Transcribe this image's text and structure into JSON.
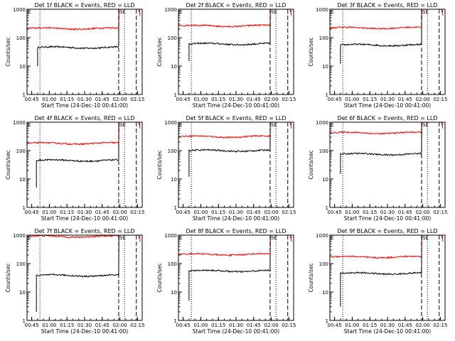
{
  "colors": {
    "events": "#000000",
    "lld": "#ff0000",
    "axis": "#000000"
  },
  "common": {
    "xlabel": "Start Time (24-Dec-10 00:41:00)",
    "ylabel": "Counts/sec",
    "xticks": [
      "00:45",
      "01:00",
      "01:15",
      "01:30",
      "01:45",
      "02:00",
      "02:15"
    ],
    "yticks": [
      "1",
      "10",
      "100",
      "1000"
    ],
    "marker_text": "SE"
  },
  "chart_data": [
    {
      "type": "line",
      "title": "Det 1f BLACK = Events, RED = LLD",
      "yscale": "log",
      "ylim": [
        1,
        1000
      ],
      "xlim": [
        "00:41",
        "02:19"
      ],
      "series": [
        {
          "name": "Events",
          "color": "#000000",
          "level": 45,
          "rise_from": 10,
          "start": "00:50",
          "end": "01:59"
        },
        {
          "name": "LLD",
          "color": "#ff0000",
          "level": 210,
          "start": "00:41",
          "end": "01:59"
        }
      ]
    },
    {
      "type": "line",
      "title": "Det 2f BLACK = Events, RED = LLD",
      "yscale": "log",
      "ylim": [
        1,
        1000
      ],
      "xlim": [
        "00:41",
        "02:19"
      ],
      "series": [
        {
          "name": "Events",
          "color": "#000000",
          "level": 60,
          "rise_from": 15,
          "start": "00:50",
          "end": "01:59"
        },
        {
          "name": "LLD",
          "color": "#ff0000",
          "level": 260,
          "start": "00:41",
          "end": "01:59"
        }
      ]
    },
    {
      "type": "line",
      "title": "Det 3f BLACK = Events, RED = LLD",
      "yscale": "log",
      "ylim": [
        1,
        1000
      ],
      "xlim": [
        "00:41",
        "02:19"
      ],
      "series": [
        {
          "name": "Events",
          "color": "#000000",
          "level": 55,
          "rise_from": 12,
          "start": "00:50",
          "end": "01:59"
        },
        {
          "name": "LLD",
          "color": "#ff0000",
          "level": 220,
          "start": "00:41",
          "end": "01:59"
        }
      ]
    },
    {
      "type": "line",
      "title": "Det 4f BLACK = Events, RED = LLD",
      "yscale": "log",
      "ylim": [
        1,
        1000
      ],
      "xlim": [
        "00:41",
        "02:19"
      ],
      "series": [
        {
          "name": "Events",
          "color": "#000000",
          "level": 45,
          "rise_from": 5,
          "start": "00:49",
          "end": "01:59"
        },
        {
          "name": "LLD",
          "color": "#ff0000",
          "level": 180,
          "start": "00:41",
          "end": "01:59"
        }
      ]
    },
    {
      "type": "line",
      "title": "Det 5f BLACK = Events, RED = LLD",
      "yscale": "log",
      "ylim": [
        1,
        1000
      ],
      "xlim": [
        "00:41",
        "02:19"
      ],
      "series": [
        {
          "name": "Events",
          "color": "#000000",
          "level": 100,
          "rise_from": 12,
          "start": "00:50",
          "end": "01:59"
        },
        {
          "name": "LLD",
          "color": "#ff0000",
          "level": 310,
          "start": "00:41",
          "end": "01:59"
        }
      ]
    },
    {
      "type": "line",
      "title": "Det 6f BLACK = Events, RED = LLD",
      "yscale": "log",
      "ylim": [
        1,
        1000
      ],
      "xlim": [
        "00:41",
        "02:19"
      ],
      "series": [
        {
          "name": "Events",
          "color": "#000000",
          "level": 75,
          "rise_from": 15,
          "start": "00:50",
          "end": "01:59"
        },
        {
          "name": "LLD",
          "color": "#ff0000",
          "level": 420,
          "start": "00:41",
          "end": "01:59"
        }
      ]
    },
    {
      "type": "line",
      "title": "Det 7f BLACK = Events, RED = LLD",
      "yscale": "log",
      "ylim": [
        1,
        1000
      ],
      "xlim": [
        "00:41",
        "02:19"
      ],
      "series": [
        {
          "name": "Events",
          "color": "#000000",
          "level": 38,
          "rise_from": 2,
          "start": "00:49",
          "end": "01:59"
        },
        {
          "name": "LLD",
          "color": "#ff0000",
          "level": 900,
          "start": "00:41",
          "end": "01:59"
        }
      ]
    },
    {
      "type": "line",
      "title": "Det 8f BLACK = Events, RED = LLD",
      "yscale": "log",
      "ylim": [
        1,
        1000
      ],
      "xlim": [
        "00:41",
        "02:19"
      ],
      "series": [
        {
          "name": "Events",
          "color": "#000000",
          "level": 55,
          "rise_from": 5,
          "start": "00:50",
          "end": "01:59"
        },
        {
          "name": "LLD",
          "color": "#ff0000",
          "level": 210,
          "start": "00:41",
          "end": "01:59"
        }
      ]
    },
    {
      "type": "line",
      "title": "Det 9f BLACK = Events, RED = LLD",
      "yscale": "log",
      "ylim": [
        1,
        1000
      ],
      "xlim": [
        "00:41",
        "02:19"
      ],
      "series": [
        {
          "name": "Events",
          "color": "#000000",
          "level": 45,
          "rise_from": 3,
          "start": "00:50",
          "end": "01:59"
        },
        {
          "name": "LLD",
          "color": "#ff0000",
          "level": 170,
          "start": "00:41",
          "end": "01:59"
        }
      ]
    }
  ]
}
